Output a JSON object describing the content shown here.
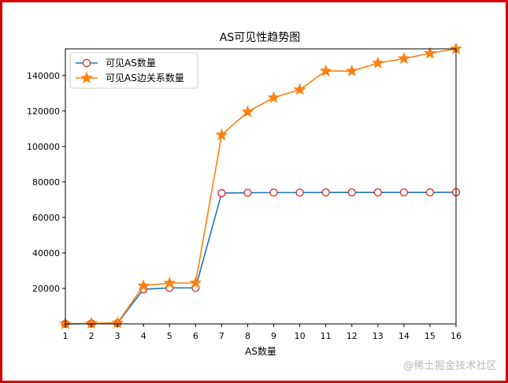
{
  "watermark": "@稀土掘金技术社区",
  "colors": {
    "frame": "#d40000",
    "series_visible_as": "#1f77b4",
    "series_as_edges": "#ff7f0e",
    "marker_edge_visible_as": "#d62728",
    "marker_face_visible_as": "#ffffff"
  },
  "chart_data": {
    "type": "line",
    "title": "AS可见性趋势图",
    "xlabel": "AS数量",
    "ylabel": "",
    "x": [
      1,
      2,
      3,
      4,
      5,
      6,
      7,
      8,
      9,
      10,
      11,
      12,
      13,
      14,
      15,
      16
    ],
    "xlim": [
      1,
      16
    ],
    "ylim": [
      0,
      155000
    ],
    "yticks": [
      20000,
      40000,
      60000,
      80000,
      100000,
      120000,
      140000
    ],
    "grid": false,
    "legend_placement": "top-left",
    "series": [
      {
        "name": "可见AS数量",
        "marker": "circle-open",
        "values": [
          0,
          200,
          400,
          19500,
          20300,
          20300,
          73700,
          73900,
          74000,
          74000,
          74100,
          74100,
          74100,
          74100,
          74100,
          74200
        ]
      },
      {
        "name": "可见AS边关系数量",
        "marker": "star",
        "values": [
          0,
          300,
          600,
          21500,
          23000,
          23100,
          106500,
          119500,
          127500,
          132000,
          142500,
          142500,
          147000,
          149500,
          152500,
          155000
        ]
      }
    ]
  }
}
